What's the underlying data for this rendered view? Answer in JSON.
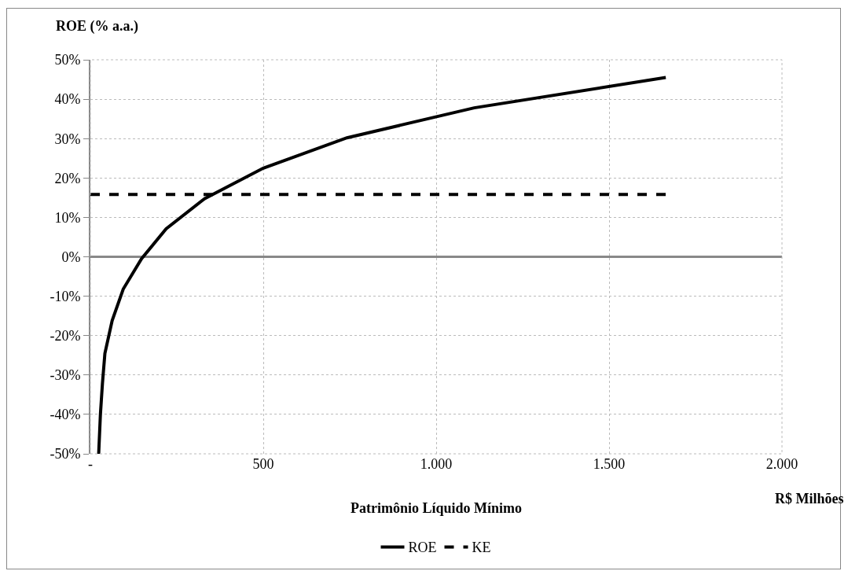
{
  "chart_data": {
    "type": "line",
    "ylabel": "ROE (% a.a.)",
    "xlabel": "Patrimônio Líquido Mínimo",
    "annotations": [
      "R$ Milhões"
    ],
    "series": [
      {
        "name": "ROE",
        "color": "#000000",
        "line_style": "solid",
        "x": [
          24,
          29,
          35,
          42,
          63,
          95,
          148,
          219,
          331,
          500,
          742,
          1110,
          1664
        ],
        "values": [
          -50,
          -40,
          -32,
          -24.5,
          -16.2,
          -8.2,
          -0.5,
          7.1,
          14.8,
          22.5,
          30.2,
          37.8,
          45.5
        ]
      },
      {
        "name": "KE",
        "color": "#000000",
        "line_style": "dashed",
        "x": [
          0,
          1664
        ],
        "values": [
          15.8,
          15.8
        ]
      }
    ],
    "xlim": [
      0,
      2000
    ],
    "xticks": [
      {
        "value": 0,
        "label": "-"
      },
      500,
      {
        "value": 1000,
        "label": "1.000"
      },
      {
        "value": 1500,
        "label": "1.500"
      },
      {
        "value": 2000,
        "label": "2.000"
      }
    ],
    "ylim": [
      -50,
      50
    ],
    "yticks": [
      {
        "value": -50,
        "label": "-50%"
      },
      {
        "value": -40,
        "label": "-40%"
      },
      {
        "value": -30,
        "label": "-30%"
      },
      {
        "value": -20,
        "label": "-20%"
      },
      {
        "value": -10,
        "label": "-10%"
      },
      {
        "value": 0,
        "label": "0%"
      },
      {
        "value": 10,
        "label": "10%"
      },
      {
        "value": 20,
        "label": "20%"
      },
      {
        "value": 30,
        "label": "30%"
      },
      {
        "value": 40,
        "label": "40%"
      },
      {
        "value": 50,
        "label": "50%"
      }
    ],
    "grid": true,
    "legend": "bottom",
    "marker": "none"
  }
}
